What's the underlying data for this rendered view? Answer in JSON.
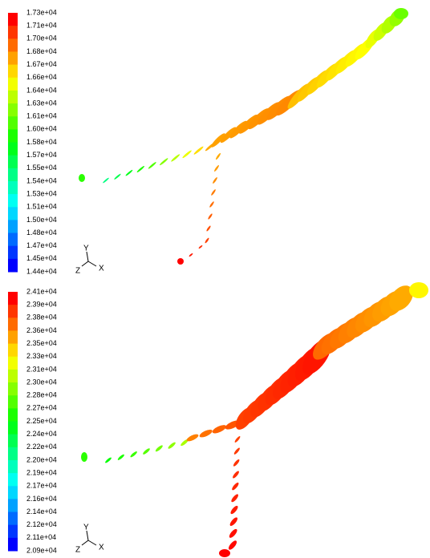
{
  "panels": [
    {
      "colorbar_labels": [
        "1.73e+04",
        "1.71e+04",
        "1.70e+04",
        "1.68e+04",
        "1.67e+04",
        "1.66e+04",
        "1.64e+04",
        "1.63e+04",
        "1.61e+04",
        "1.60e+04",
        "1.58e+04",
        "1.57e+04",
        "1.55e+04",
        "1.54e+04",
        "1.53e+04",
        "1.51e+04",
        "1.50e+04",
        "1.48e+04",
        "1.47e+04",
        "1.45e+04",
        "1.44e+04"
      ],
      "axes": {
        "y": "Y",
        "x": "X",
        "z": "Z"
      }
    },
    {
      "colorbar_labels": [
        "2.41e+04",
        "2.39e+04",
        "2.38e+04",
        "2.36e+04",
        "2.35e+04",
        "2.33e+04",
        "2.31e+04",
        "2.30e+04",
        "2.28e+04",
        "2.27e+04",
        "2.25e+04",
        "2.24e+04",
        "2.22e+04",
        "2.20e+04",
        "2.19e+04",
        "2.17e+04",
        "2.16e+04",
        "2.14e+04",
        "2.12e+04",
        "2.11e+04",
        "2.09e+04"
      ],
      "axes": {
        "y": "Y",
        "x": "X",
        "z": "Z"
      }
    }
  ]
}
